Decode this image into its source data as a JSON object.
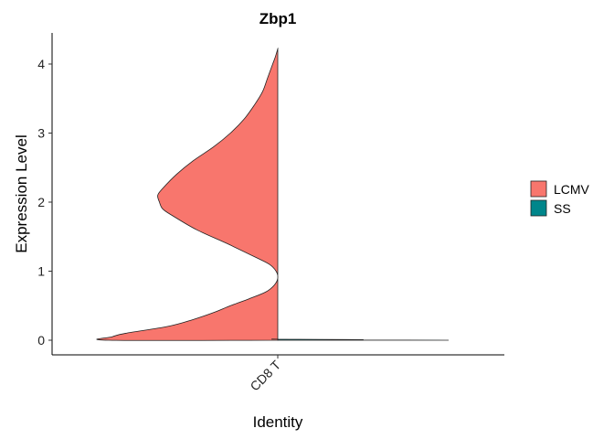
{
  "chart_data": {
    "type": "violin",
    "title": "Zbp1",
    "xlabel": "Identity",
    "ylabel": "Expression Level",
    "categories": [
      "CD8 T"
    ],
    "ylim": [
      -0.2,
      4.5
    ],
    "yticks": [
      0,
      1,
      2,
      3,
      4
    ],
    "grid": false,
    "legend_position": "right",
    "series": [
      {
        "name": "LCMV",
        "color": "#F8766D",
        "side": "left",
        "density_profile": {
          "y": [
            0.0,
            0.05,
            0.1,
            0.2,
            0.3,
            0.4,
            0.5,
            0.6,
            0.7,
            0.8,
            0.9,
            1.0,
            1.1,
            1.2,
            1.4,
            1.6,
            1.8,
            1.9,
            2.0,
            2.1,
            2.2,
            2.4,
            2.6,
            2.8,
            3.0,
            3.2,
            3.4,
            3.6,
            3.8,
            4.0,
            4.1,
            4.22
          ],
          "width": [
            1.0,
            0.98,
            0.9,
            0.65,
            0.5,
            0.38,
            0.28,
            0.17,
            0.07,
            0.02,
            0.0,
            0.01,
            0.05,
            0.13,
            0.3,
            0.48,
            0.62,
            0.68,
            0.7,
            0.71,
            0.68,
            0.6,
            0.5,
            0.38,
            0.28,
            0.2,
            0.14,
            0.09,
            0.06,
            0.03,
            0.015,
            0.0
          ]
        }
      },
      {
        "name": "SS",
        "color": "#00868B",
        "side": "right",
        "density_profile": {
          "y": [
            0.0,
            0.003,
            0.008,
            0.015
          ],
          "width": [
            1.0,
            0.5,
            0.48,
            0.0
          ]
        }
      }
    ]
  }
}
